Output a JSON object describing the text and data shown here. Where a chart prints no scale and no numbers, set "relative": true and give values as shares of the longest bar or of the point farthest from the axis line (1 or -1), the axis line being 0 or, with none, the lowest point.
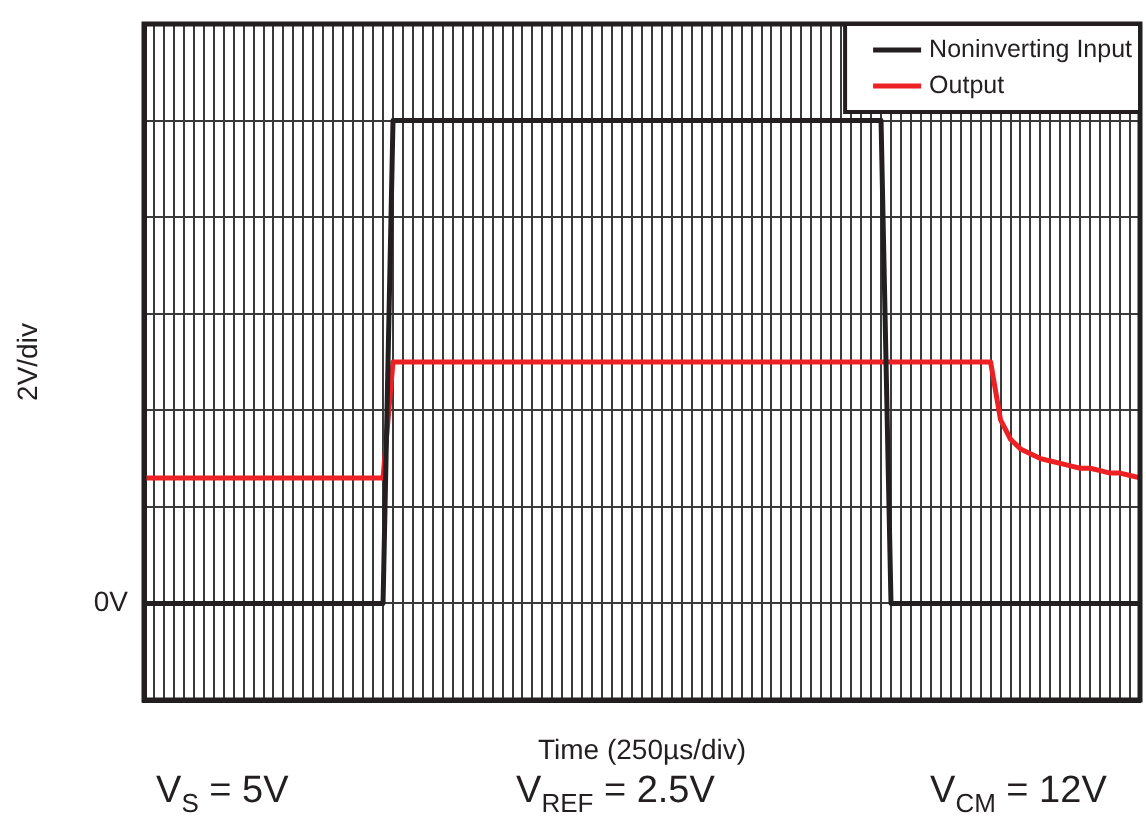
{
  "chart_data": {
    "type": "line",
    "xlabel": "Time (250µs/div)",
    "ylabel": "2V/div",
    "relative": true,
    "categories": [
      null,
      null,
      null,
      null,
      null,
      null,
      null,
      null,
      null,
      null,
      null,
      null,
      null,
      null,
      null,
      null,
      null,
      null,
      null,
      null,
      null,
      null,
      null,
      null,
      null,
      null,
      null,
      null,
      null,
      null,
      null,
      null,
      null,
      null,
      null,
      null,
      null,
      null,
      null,
      null,
      null,
      null,
      null,
      null,
      null,
      null,
      null,
      null,
      null,
      null,
      null,
      null,
      null,
      null,
      null,
      null,
      null,
      null,
      null,
      null,
      null,
      null,
      null,
      null,
      null,
      null,
      null,
      null,
      null,
      null,
      null,
      null,
      null,
      null,
      null,
      null,
      null,
      null,
      null,
      null,
      null,
      null,
      null,
      null,
      null,
      null,
      null,
      null,
      null,
      null,
      null,
      null,
      null,
      null,
      null,
      null,
      null,
      null,
      null,
      null,
      null
    ],
    "grid": true,
    "legend": "top right",
    "line_style": "solid",
    "series": [
      {
        "name": "Noninverting Input",
        "color": "#231f20",
        "values": [
          0,
          0,
          0,
          0,
          0,
          0,
          0,
          0,
          0,
          0,
          0,
          0,
          0,
          0,
          0,
          0,
          0,
          0,
          0,
          0,
          0,
          0,
          0,
          0,
          0,
          1,
          1,
          1,
          1,
          1,
          1,
          1,
          1,
          1,
          1,
          1,
          1,
          1,
          1,
          1,
          1,
          1,
          1,
          1,
          1,
          1,
          1,
          1,
          1,
          1,
          1,
          1,
          1,
          1,
          1,
          1,
          1,
          1,
          1,
          1,
          1,
          1,
          1,
          1,
          1,
          1,
          1,
          1,
          1,
          1,
          1,
          1,
          1,
          1,
          1,
          0,
          0,
          0,
          0,
          0,
          0,
          0,
          0,
          0,
          0,
          0,
          0,
          0,
          0,
          0,
          0,
          0,
          0,
          0,
          0,
          0,
          0,
          0,
          0,
          0,
          0
        ]
      },
      {
        "name": "Output",
        "color": "#ed2024",
        "values": [
          0.26,
          0.26,
          0.26,
          0.26,
          0.26,
          0.26,
          0.26,
          0.26,
          0.26,
          0.26,
          0.26,
          0.26,
          0.26,
          0.26,
          0.26,
          0.26,
          0.26,
          0.26,
          0.26,
          0.26,
          0.26,
          0.26,
          0.26,
          0.26,
          0.26,
          0.5,
          0.5,
          0.5,
          0.5,
          0.5,
          0.5,
          0.5,
          0.5,
          0.5,
          0.5,
          0.5,
          0.5,
          0.5,
          0.5,
          0.5,
          0.5,
          0.5,
          0.5,
          0.5,
          0.5,
          0.5,
          0.5,
          0.5,
          0.5,
          0.5,
          0.5,
          0.5,
          0.5,
          0.5,
          0.5,
          0.5,
          0.5,
          0.5,
          0.5,
          0.5,
          0.5,
          0.5,
          0.5,
          0.5,
          0.5,
          0.5,
          0.5,
          0.5,
          0.5,
          0.5,
          0.5,
          0.5,
          0.5,
          0.5,
          0.5,
          0.5,
          0.5,
          0.5,
          0.5,
          0.5,
          0.5,
          0.5,
          0.5,
          0.5,
          0.5,
          0.5,
          0.38,
          0.34,
          0.32,
          0.31,
          0.3,
          0.295,
          0.29,
          0.285,
          0.28,
          0.28,
          0.275,
          0.27,
          0.27,
          0.265,
          0.26
        ]
      }
    ],
    "annotations": [
      "0V",
      "V$_{S}$ = 5V",
      "V$_{REF}$ = 2.5V",
      "V$_{CM}$ = 12V"
    ]
  }
}
